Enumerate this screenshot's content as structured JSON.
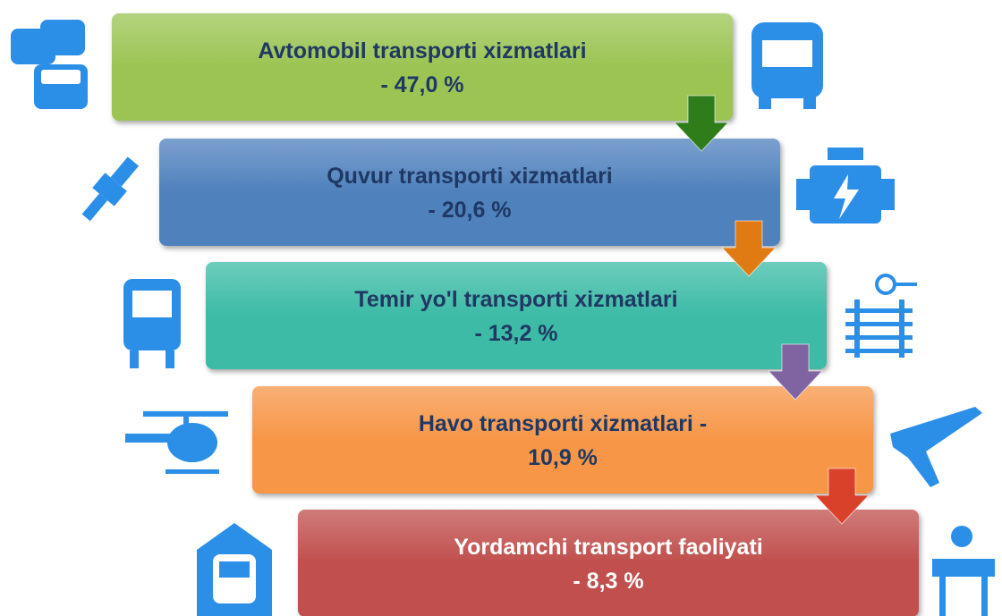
{
  "items": [
    {
      "lines": [
        "Avtomobil transporti xizmatlari",
        "- 47,0 %"
      ]
    },
    {
      "lines": [
        "Quvur transporti xizmatlari",
        "- 20,6 %"
      ]
    },
    {
      "lines": [
        "Temir yo'l transporti xizmatlari",
        "- 13,2 %"
      ]
    },
    {
      "lines": [
        "Havo transporti xizmatlari -",
        "10,9 %"
      ]
    },
    {
      "lines": [
        "Yordamchi transport faoliyati",
        "- 8,3 %"
      ]
    }
  ]
}
